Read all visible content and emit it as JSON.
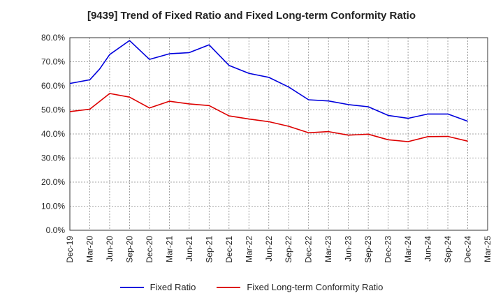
{
  "chart_data": {
    "type": "line",
    "title": "[9439]  Trend of Fixed Ratio and Fixed Long-term Conformity Ratio",
    "xlabel": "",
    "ylabel": "",
    "ylim": [
      0,
      80
    ],
    "yticks": [
      "0.0%",
      "10.0%",
      "20.0%",
      "30.0%",
      "40.0%",
      "50.0%",
      "60.0%",
      "70.0%",
      "80.0%"
    ],
    "categories": [
      "Dec-19",
      "Mar-20",
      "Jun-20",
      "Sep-20",
      "Dec-20",
      "Mar-21",
      "Jun-21",
      "Sep-21",
      "Dec-21",
      "Mar-22",
      "Jun-22",
      "Sep-22",
      "Dec-22",
      "Mar-23",
      "Jun-23",
      "Sep-23",
      "Dec-23",
      "Mar-24",
      "Jun-24",
      "Sep-24",
      "Dec-24",
      "Mar-25"
    ],
    "grid": true,
    "legend_position": "bottom",
    "series": [
      {
        "name": "Fixed Ratio",
        "color": "#0000dd",
        "points": [
          {
            "i": 0,
            "v": 61.0
          },
          {
            "i": 1,
            "v": 62.5
          },
          {
            "i": 1.5,
            "v": 67.0
          },
          {
            "i": 2,
            "v": 73.0
          },
          {
            "i": 3,
            "v": 78.8
          },
          {
            "i": 4,
            "v": 71.0
          },
          {
            "i": 5,
            "v": 73.3
          },
          {
            "i": 6,
            "v": 73.8
          },
          {
            "i": 7,
            "v": 77.0
          },
          {
            "i": 8,
            "v": 68.5
          },
          {
            "i": 9,
            "v": 65.2
          },
          {
            "i": 10,
            "v": 63.5
          },
          {
            "i": 11,
            "v": 59.5
          },
          {
            "i": 12,
            "v": 54.2
          },
          {
            "i": 13,
            "v": 53.7
          },
          {
            "i": 14,
            "v": 52.2
          },
          {
            "i": 15,
            "v": 51.3
          },
          {
            "i": 16,
            "v": 47.7
          },
          {
            "i": 17,
            "v": 46.5
          },
          {
            "i": 18,
            "v": 48.3
          },
          {
            "i": 19,
            "v": 48.3
          },
          {
            "i": 20,
            "v": 45.3
          }
        ]
      },
      {
        "name": "Fixed Long-term Conformity Ratio",
        "color": "#dd0000",
        "points": [
          {
            "i": 0,
            "v": 49.3
          },
          {
            "i": 1,
            "v": 50.3
          },
          {
            "i": 2,
            "v": 56.8
          },
          {
            "i": 3,
            "v": 55.3
          },
          {
            "i": 4,
            "v": 50.8
          },
          {
            "i": 5,
            "v": 53.6
          },
          {
            "i": 6,
            "v": 52.5
          },
          {
            "i": 7,
            "v": 51.8
          },
          {
            "i": 8,
            "v": 47.5
          },
          {
            "i": 9,
            "v": 46.2
          },
          {
            "i": 10,
            "v": 45.1
          },
          {
            "i": 11,
            "v": 43.2
          },
          {
            "i": 12,
            "v": 40.5
          },
          {
            "i": 13,
            "v": 41.0
          },
          {
            "i": 14,
            "v": 39.5
          },
          {
            "i": 15,
            "v": 39.9
          },
          {
            "i": 16,
            "v": 37.6
          },
          {
            "i": 17,
            "v": 36.8
          },
          {
            "i": 18,
            "v": 38.9
          },
          {
            "i": 19,
            "v": 39.0
          },
          {
            "i": 20,
            "v": 37.0
          }
        ]
      }
    ]
  }
}
